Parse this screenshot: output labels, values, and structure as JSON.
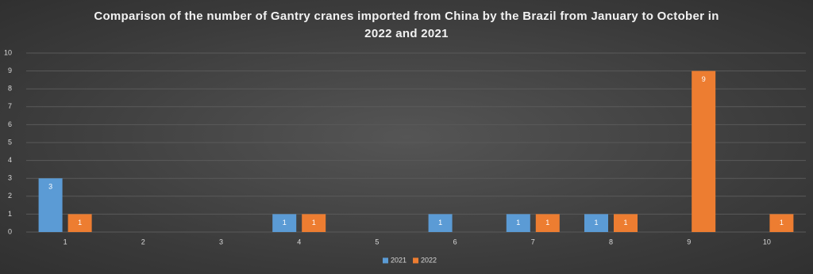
{
  "chart_data": {
    "type": "bar",
    "title": "Comparison of the number of Gantry cranes imported from China by the Brazil from January to October in 2022 and 2021",
    "categories": [
      "1",
      "2",
      "3",
      "4",
      "5",
      "6",
      "7",
      "8",
      "9",
      "10"
    ],
    "series": [
      {
        "name": "2021",
        "color": "#5b9bd5",
        "values": [
          3,
          null,
          null,
          1,
          null,
          1,
          1,
          1,
          null,
          null
        ]
      },
      {
        "name": "2022",
        "color": "#ed7d31",
        "values": [
          1,
          null,
          null,
          1,
          null,
          null,
          1,
          1,
          9,
          1
        ]
      }
    ],
    "ylim": [
      0,
      10
    ],
    "yticks": [
      0,
      1,
      2,
      3,
      4,
      5,
      6,
      7,
      8,
      9,
      10
    ],
    "grid": true,
    "legend": "bottom"
  }
}
